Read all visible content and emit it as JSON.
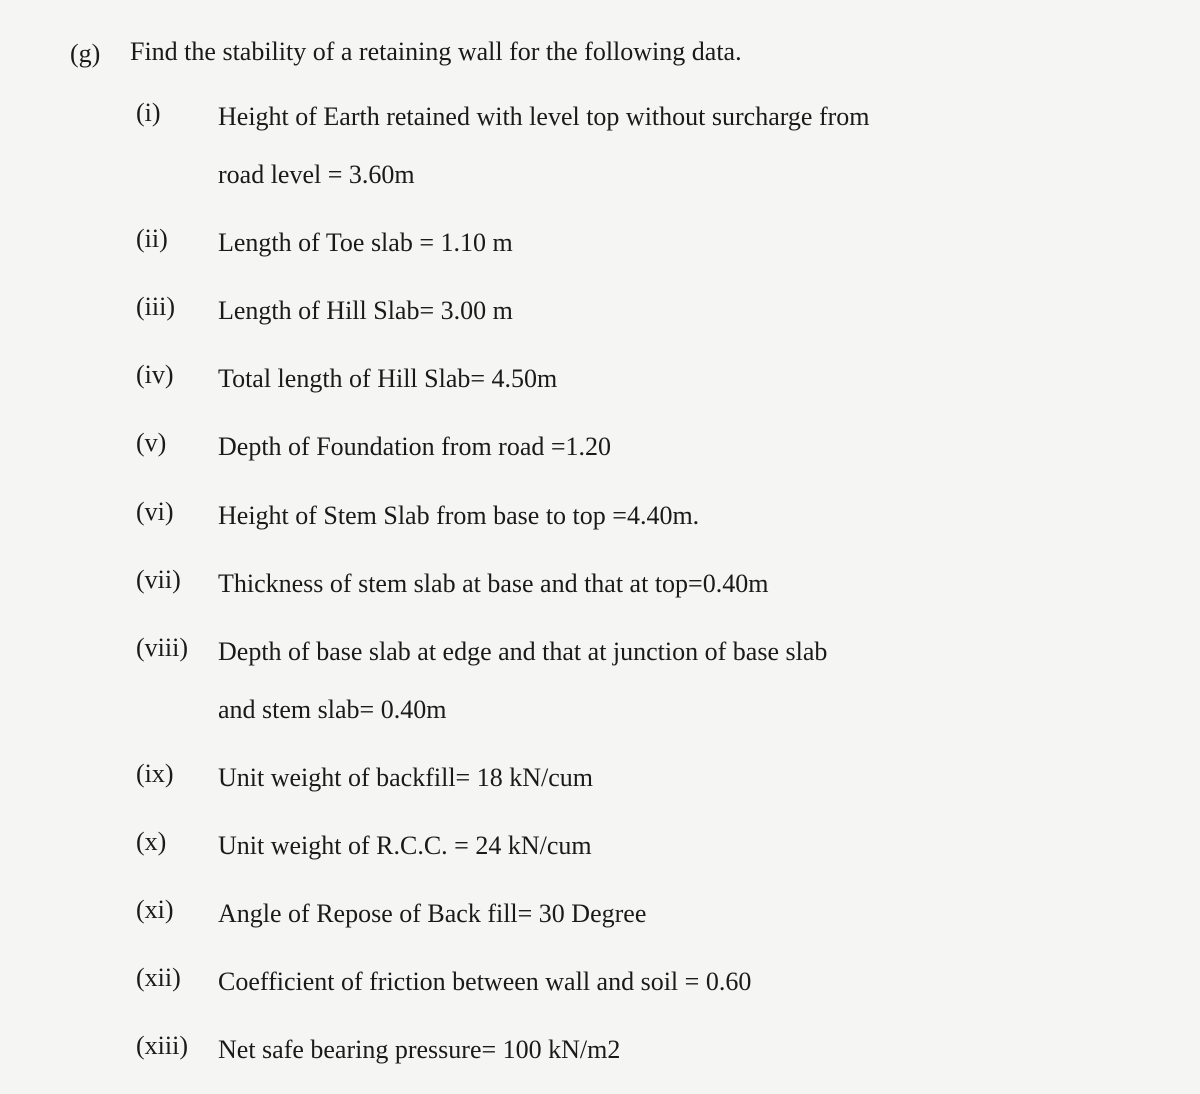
{
  "question": {
    "marker": "(g)",
    "title": "Find the stability of a retaining wall for the following data."
  },
  "items": [
    {
      "num": "(i)",
      "text_line1": "Height of Earth retained with level top without surcharge from",
      "text_line2": "road level = 3.60m"
    },
    {
      "num": "(ii)",
      "text_line1": "Length of Toe slab = 1.10 m",
      "text_line2": ""
    },
    {
      "num": "(iii)",
      "text_line1": "Length of Hill Slab= 3.00 m",
      "text_line2": ""
    },
    {
      "num": "(iv)",
      "text_line1": "Total length of Hill Slab= 4.50m",
      "text_line2": ""
    },
    {
      "num": "(v)",
      "text_line1": "Depth of Foundation from road =1.20",
      "text_line2": ""
    },
    {
      "num": "(vi)",
      "text_line1": "Height of Stem Slab from base to top =4.40m.",
      "text_line2": ""
    },
    {
      "num": "(vii)",
      "text_line1": "Thickness of stem slab at base and that at top=0.40m",
      "text_line2": ""
    },
    {
      "num": "(viii)",
      "text_line1": "Depth of base slab at edge and that at junction of base slab",
      "text_line2": "and stem slab= 0.40m"
    },
    {
      "num": "(ix)",
      "text_line1": "Unit weight of backfill= 18 kN/cum",
      "text_line2": ""
    },
    {
      "num": "(x)",
      "text_line1": "Unit weight of R.C.C. = 24 kN/cum",
      "text_line2": ""
    },
    {
      "num": "(xi)",
      "text_line1": "Angle of Repose of Back fill= 30 Degree",
      "text_line2": ""
    },
    {
      "num": "(xii)",
      "text_line1": "Coefficient of friction between wall and soil = 0.60",
      "text_line2": ""
    },
    {
      "num": "(xiii)",
      "text_line1": "Net safe bearing pressure= 100 kN/m2",
      "text_line2": ""
    }
  ]
}
